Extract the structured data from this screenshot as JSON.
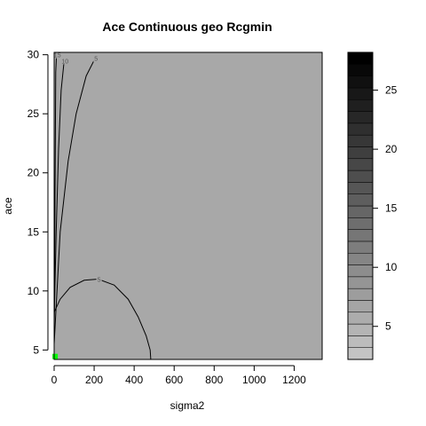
{
  "chart_data": {
    "type": "contour",
    "title": "Ace Continuous  geo  Rcgmin",
    "xlabel": "sigma2",
    "ylabel": "ace",
    "xlim": [
      0,
      1340
    ],
    "ylim": [
      4.2,
      30.2
    ],
    "x_ticks": [
      0,
      200,
      400,
      600,
      800,
      1000,
      1200
    ],
    "y_ticks": [
      5,
      10,
      15,
      20,
      25,
      30
    ],
    "fill_color": "#a8a8a8",
    "contours": [
      {
        "level": "5",
        "points": [
          [
            0,
            8.2
          ],
          [
            30,
            9.3
          ],
          [
            80,
            10.3
          ],
          [
            150,
            10.9
          ],
          [
            220,
            11.0
          ],
          [
            300,
            10.5
          ],
          [
            370,
            9.3
          ],
          [
            420,
            7.8
          ],
          [
            460,
            6.2
          ],
          [
            480,
            5.0
          ],
          [
            483,
            4.2
          ]
        ]
      },
      {
        "level": "5",
        "points": [
          [
            0,
            5.5
          ],
          [
            30,
            15.0
          ],
          [
            70,
            21.0
          ],
          [
            110,
            25.0
          ],
          [
            160,
            28.2
          ],
          [
            205,
            29.7
          ]
        ]
      },
      {
        "level": "10",
        "points": [
          [
            0,
            7.5
          ],
          [
            10,
            15.0
          ],
          [
            22,
            22.0
          ],
          [
            35,
            27.0
          ],
          [
            50,
            29.5
          ]
        ]
      },
      {
        "level": "15",
        "points": [
          [
            0,
            5.5
          ],
          [
            8,
            28.5
          ],
          [
            12,
            30.0
          ]
        ]
      }
    ],
    "optimum_point": {
      "x": 5,
      "y": 4.45,
      "color": "#00ff00"
    },
    "colorbar": {
      "ticks": [
        5,
        10,
        15,
        20,
        25
      ],
      "min": 2.2,
      "max": 28.2,
      "step": 1.0,
      "color_light": "#c4c4c4",
      "color_dark": "#000000"
    }
  }
}
